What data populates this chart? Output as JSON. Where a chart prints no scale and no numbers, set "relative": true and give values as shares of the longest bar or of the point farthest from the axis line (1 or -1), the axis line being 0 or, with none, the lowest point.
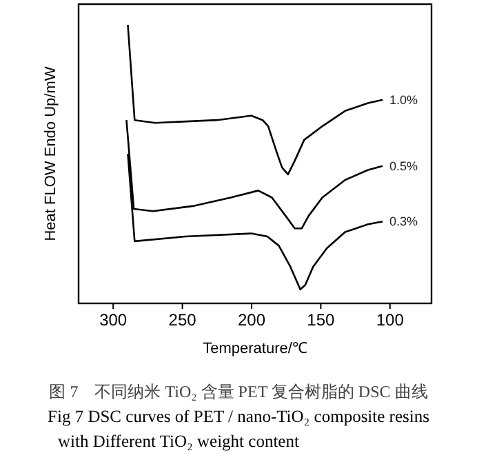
{
  "chart_data": {
    "type": "line",
    "relative": true,
    "xlabel": "Temperature/℃",
    "ylabel": "Heat FLOW Endo Up/mW",
    "xlim": [
      325,
      70
    ],
    "xticks": [
      300,
      250,
      200,
      150,
      100
    ],
    "grid": false,
    "marker": "none",
    "line_style": "solid",
    "series": [
      {
        "name": "1.0%",
        "color": "#000000",
        "x": [
          289.4,
          284.5,
          269.6,
          225,
          200.2,
          192,
          188,
          182,
          178,
          173.7,
          168.8,
          162,
          148.9,
          132.4,
          115.9,
          105.3
        ],
        "values": [
          1.0,
          0.658,
          0.648,
          0.658,
          0.674,
          0.658,
          0.636,
          0.545,
          0.488,
          0.463,
          0.512,
          0.587,
          0.636,
          0.691,
          0.719,
          0.731
        ]
      },
      {
        "name": "0.5%",
        "color": "#000000",
        "x": [
          290.4,
          285.1,
          271.2,
          241.5,
          215,
          195.2,
          185.3,
          175.4,
          168.8,
          163.8,
          158.8,
          148.9,
          132.4,
          115.9,
          105.3
        ],
        "values": [
          0.658,
          0.339,
          0.331,
          0.35,
          0.38,
          0.405,
          0.38,
          0.314,
          0.269,
          0.269,
          0.314,
          0.38,
          0.443,
          0.479,
          0.493
        ]
      },
      {
        "name": "0.3%",
        "color": "#000000",
        "x": [
          289.4,
          284.5,
          248,
          200.2,
          188.6,
          180.3,
          172,
          164.8,
          161.2,
          155.5,
          145.6,
          132.4,
          115.9,
          105.3
        ],
        "values": [
          0.537,
          0.223,
          0.24,
          0.251,
          0.24,
          0.207,
          0.132,
          0.05,
          0.066,
          0.132,
          0.198,
          0.256,
          0.284,
          0.294
        ]
      }
    ],
    "annotations": [
      "图 7　不同纳米 TiO₂ 含量 PET 复合树脂的 DSC 曲线",
      "Fig 7 DSC curves of PET / nano-TiO₂ composite resins",
      "with Different TiO₂ weight content"
    ]
  }
}
